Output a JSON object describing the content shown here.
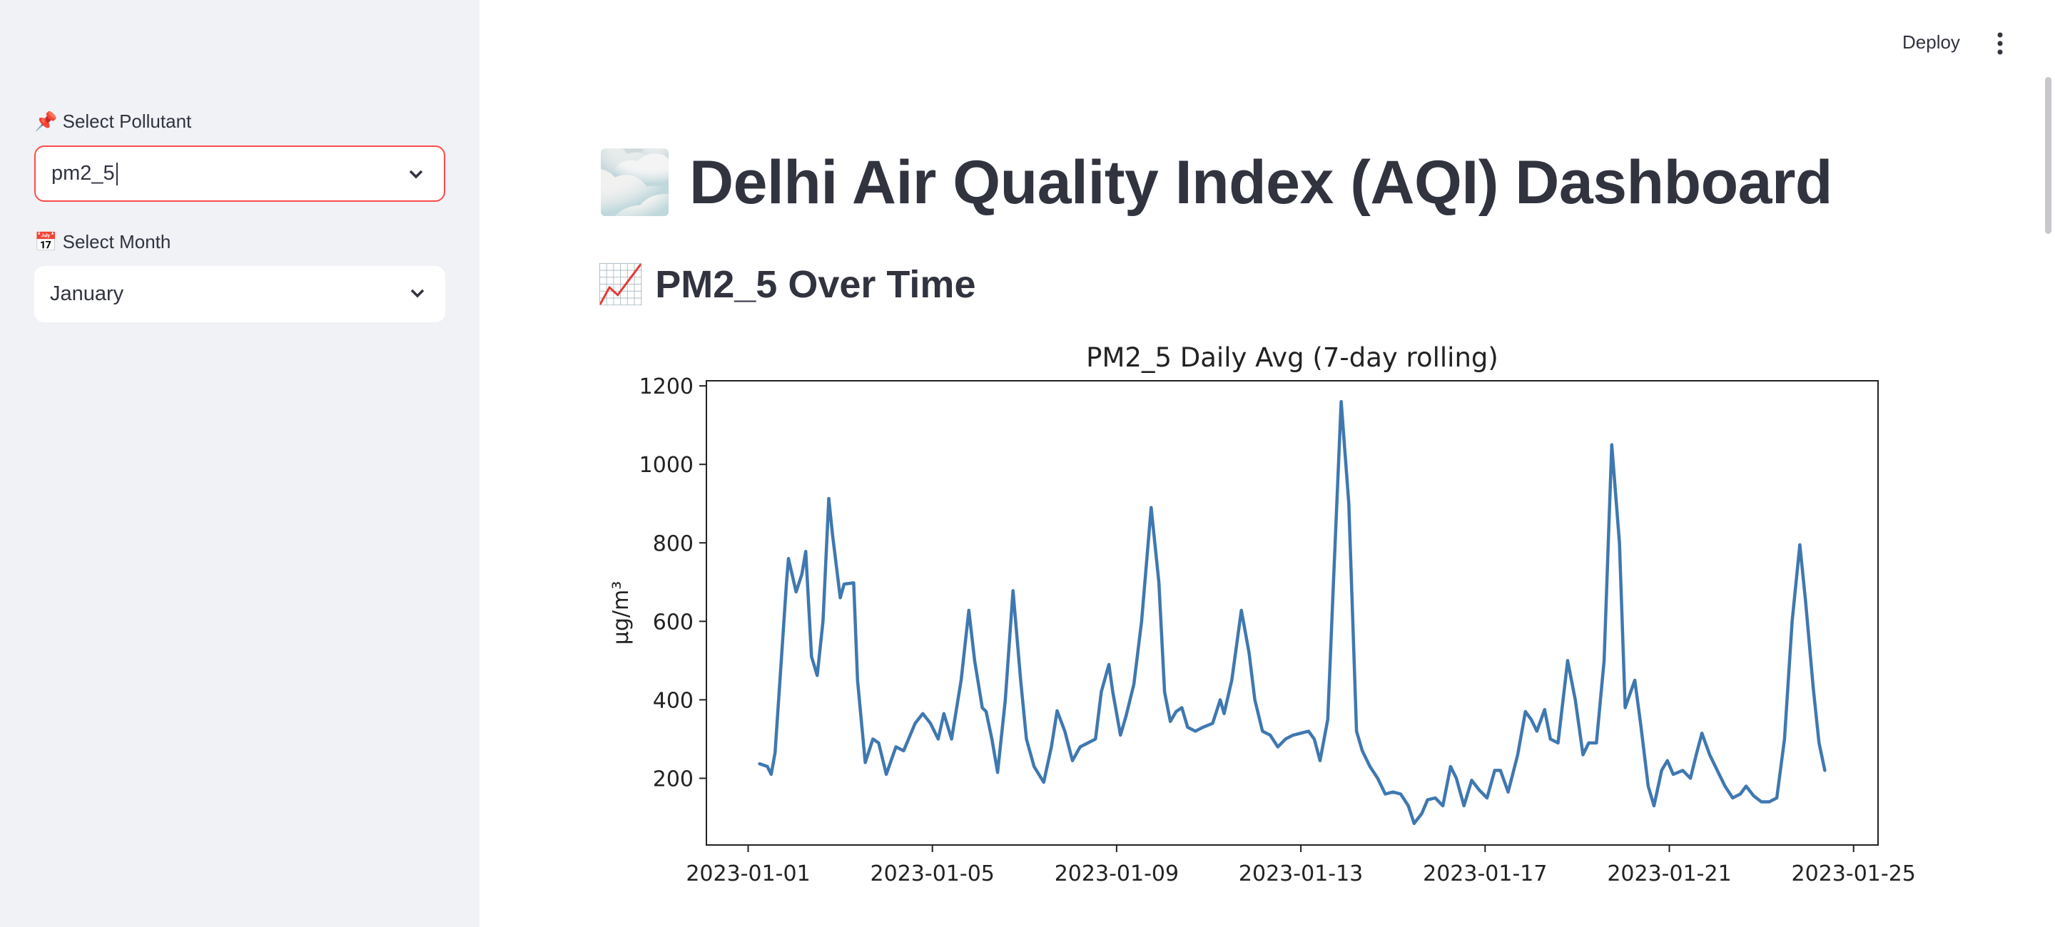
{
  "sidebar": {
    "pollutant_label": "📌 Select Pollutant",
    "pollutant_value": "pm2_5",
    "month_label": "📅 Select Month",
    "month_value": "January"
  },
  "header": {
    "deploy": "Deploy"
  },
  "title": "🌫️ Delhi Air Quality Index (AQI) Dashboard",
  "subheader": "📈 PM2_5 Over Time",
  "chart_data": {
    "type": "line",
    "title": "PM2_5 Daily Avg (7-day rolling)",
    "y_label": "µg/m³",
    "color": "#3f78b0",
    "grid": false,
    "xlim": [
      "2022-12-31 02:15",
      "2023-01-25 12:45"
    ],
    "xticks": [
      "2023-01-01",
      "2023-01-05",
      "2023-01-09",
      "2023-01-13",
      "2023-01-17",
      "2023-01-21",
      "2023-01-25"
    ],
    "ylim": [
      30,
      1213
    ],
    "yticks": [
      200,
      400,
      600,
      800,
      1000,
      1200
    ],
    "x": [
      "2023-01-01 06:00",
      "2023-01-01 10:00",
      "2023-01-01 12:00",
      "2023-01-01 14:00",
      "2023-01-01 17:00",
      "2023-01-01 20:00",
      "2023-01-01 21:00",
      "2023-01-02 01:00",
      "2023-01-02 04:00",
      "2023-01-02 06:00",
      "2023-01-02 09:00",
      "2023-01-02 12:00",
      "2023-01-02 15:00",
      "2023-01-02 18:00",
      "2023-01-02 20:00",
      "2023-01-03 00:00",
      "2023-01-03 02:00",
      "2023-01-03 07:00",
      "2023-01-03 09:00",
      "2023-01-03 13:00",
      "2023-01-03 17:00",
      "2023-01-03 20:00",
      "2023-01-04 00:00",
      "2023-01-04 05:00",
      "2023-01-04 09:00",
      "2023-01-04 15:00",
      "2023-01-04 19:00",
      "2023-01-04 23:00",
      "2023-01-05 03:00",
      "2023-01-05 06:00",
      "2023-01-05 10:00",
      "2023-01-05 15:00",
      "2023-01-05 19:00",
      "2023-01-05 22:00",
      "2023-01-06 02:00",
      "2023-01-06 04:00",
      "2023-01-06 07:00",
      "2023-01-06 10:00",
      "2023-01-06 14:00",
      "2023-01-06 18:00",
      "2023-01-06 22:00",
      "2023-01-07 01:00",
      "2023-01-07 05:00",
      "2023-01-07 10:00",
      "2023-01-07 14:00",
      "2023-01-07 17:00",
      "2023-01-07 21:00",
      "2023-01-08 01:00",
      "2023-01-08 05:00",
      "2023-01-08 09:00",
      "2023-01-08 13:00",
      "2023-01-08 16:00",
      "2023-01-08 20:00",
      "2023-01-08 22:00",
      "2023-01-09 02:00",
      "2023-01-09 05:00",
      "2023-01-09 09:00",
      "2023-01-09 13:00",
      "2023-01-09 18:00",
      "2023-01-09 22:00",
      "2023-01-10 01:00",
      "2023-01-10 04:00",
      "2023-01-10 07:00",
      "2023-01-10 10:00",
      "2023-01-10 13:00",
      "2023-01-10 17:00",
      "2023-01-10 21:00",
      "2023-01-11 02:00",
      "2023-01-11 06:00",
      "2023-01-11 08:00",
      "2023-01-11 12:00",
      "2023-01-11 17:00",
      "2023-01-11 21:00",
      "2023-01-12 00:00",
      "2023-01-12 04:00",
      "2023-01-12 08:00",
      "2023-01-12 12:00",
      "2023-01-12 16:00",
      "2023-01-12 20:00",
      "2023-01-13 00:00",
      "2023-01-13 04:00",
      "2023-01-13 07:00",
      "2023-01-13 10:00",
      "2023-01-13 14:00",
      "2023-01-13 17:00",
      "2023-01-13 21:00",
      "2023-01-14 01:00",
      "2023-01-14 05:00",
      "2023-01-14 08:00",
      "2023-01-14 12:00",
      "2023-01-14 16:00",
      "2023-01-14 20:00",
      "2023-01-15 00:00",
      "2023-01-15 04:00",
      "2023-01-15 08:00",
      "2023-01-15 11:00",
      "2023-01-15 15:00",
      "2023-01-15 18:00",
      "2023-01-15 22:00",
      "2023-01-16 02:00",
      "2023-01-16 06:00",
      "2023-01-16 09:00",
      "2023-01-16 13:00",
      "2023-01-16 17:00",
      "2023-01-16 21:00",
      "2023-01-17 01:00",
      "2023-01-17 05:00",
      "2023-01-17 08:00",
      "2023-01-17 12:00",
      "2023-01-17 17:00",
      "2023-01-17 21:00",
      "2023-01-18 00:00",
      "2023-01-18 03:00",
      "2023-01-18 07:00",
      "2023-01-18 10:00",
      "2023-01-18 14:00",
      "2023-01-18 19:00",
      "2023-01-18 23:00",
      "2023-01-19 03:00",
      "2023-01-19 06:00",
      "2023-01-19 10:00",
      "2023-01-19 14:00",
      "2023-01-19 18:00",
      "2023-01-19 22:00",
      "2023-01-20 01:00",
      "2023-01-20 06:00",
      "2023-01-20 09:00",
      "2023-01-20 13:00",
      "2023-01-20 16:00",
      "2023-01-20 20:00",
      "2023-01-20 23:00",
      "2023-01-21 02:00",
      "2023-01-21 07:00",
      "2023-01-21 11:00",
      "2023-01-21 14:00",
      "2023-01-21 17:00",
      "2023-01-21 21:00",
      "2023-01-22 01:00",
      "2023-01-22 05:00",
      "2023-01-22 09:00",
      "2023-01-22 13:00",
      "2023-01-22 16:00",
      "2023-01-22 20:00",
      "2023-01-23 00:00",
      "2023-01-23 04:00",
      "2023-01-23 08:00",
      "2023-01-23 12:00",
      "2023-01-23 16:00",
      "2023-01-23 20:00",
      "2023-01-23 23:00",
      "2023-01-24 03:00",
      "2023-01-24 06:00",
      "2023-01-24 09:00"
    ],
    "values": [
      237,
      230,
      210,
      265,
      480,
      700,
      760,
      675,
      720,
      778,
      510,
      462,
      600,
      913,
      820,
      660,
      695,
      698,
      450,
      240,
      300,
      290,
      210,
      280,
      270,
      340,
      365,
      340,
      300,
      365,
      300,
      450,
      628,
      500,
      380,
      370,
      300,
      215,
      400,
      678,
      450,
      300,
      230,
      190,
      280,
      372,
      320,
      245,
      280,
      290,
      300,
      420,
      490,
      420,
      310,
      360,
      440,
      600,
      890,
      700,
      420,
      345,
      370,
      380,
      330,
      320,
      330,
      340,
      400,
      365,
      450,
      628,
      520,
      400,
      320,
      310,
      280,
      300,
      310,
      315,
      320,
      300,
      245,
      350,
      700,
      1160,
      900,
      320,
      270,
      230,
      200,
      160,
      165,
      160,
      130,
      85,
      110,
      145,
      150,
      130,
      230,
      200,
      130,
      195,
      170,
      150,
      220,
      220,
      165,
      260,
      370,
      350,
      320,
      375,
      300,
      290,
      500,
      400,
      260,
      290,
      290,
      500,
      1050,
      800,
      380,
      450,
      340,
      180,
      130,
      220,
      245,
      210,
      220,
      200,
      260,
      315,
      260,
      220,
      180,
      150,
      160,
      180,
      155,
      140,
      140,
      150,
      300,
      600,
      795,
      650,
      430,
      290,
      220
    ]
  }
}
